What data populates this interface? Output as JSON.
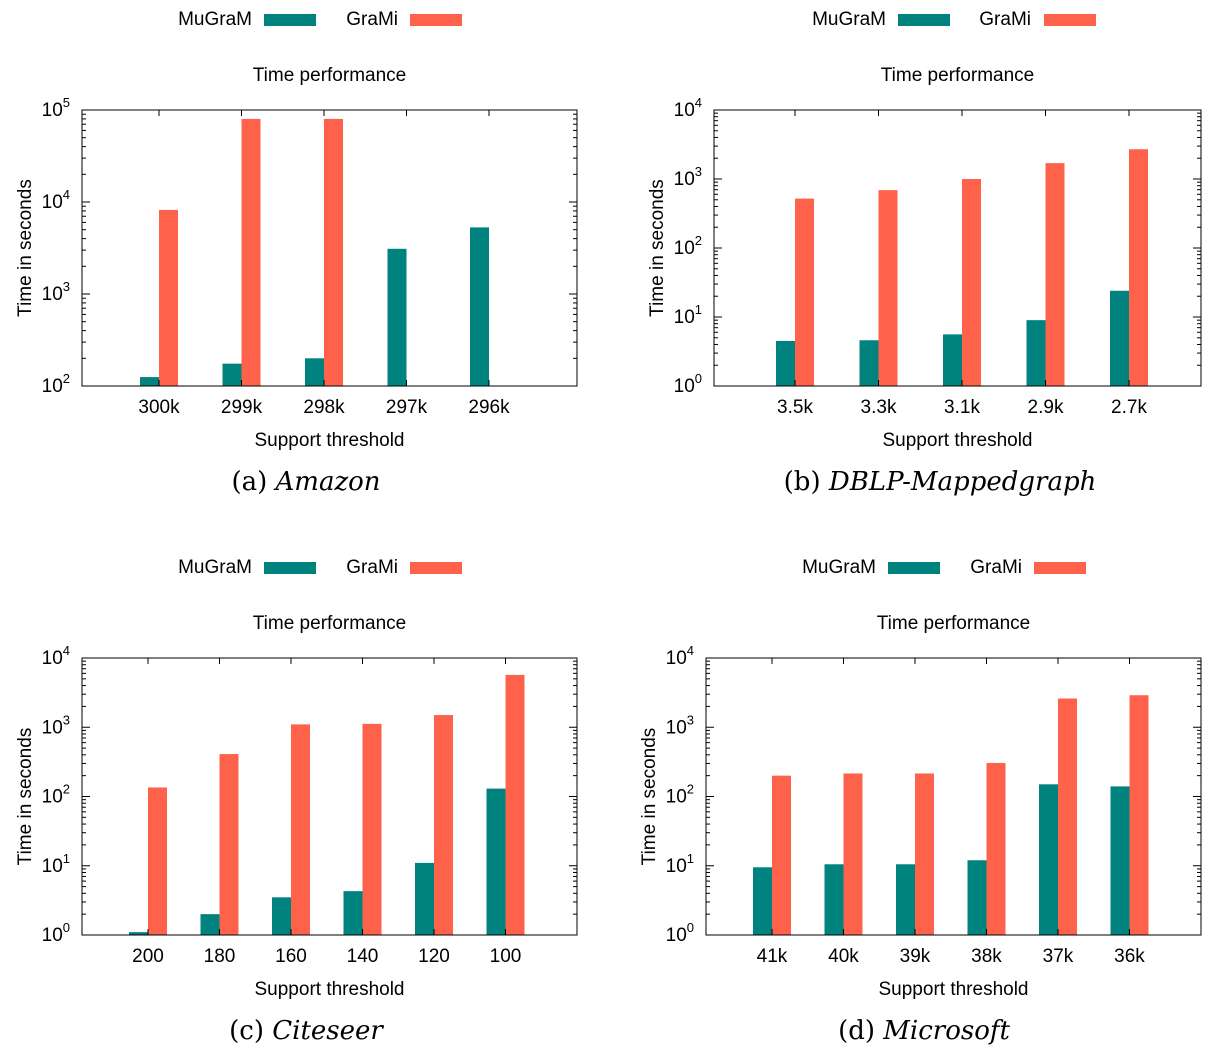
{
  "colors": {
    "mugram": "#00827f",
    "grami": "#ff624a",
    "axis": "#000000"
  },
  "chart_data": [
    {
      "type": "bar",
      "panel_label": "(a)",
      "dataset": "Amazon",
      "title": "Time performance",
      "xlabel": "Support threshold",
      "ylabel": "Time in seconds",
      "yscale": "log",
      "ylim": [
        100,
        100000
      ],
      "yticks": [
        {
          "base": "10",
          "exp": "2"
        },
        {
          "base": "10",
          "exp": "3"
        },
        {
          "base": "10",
          "exp": "4"
        },
        {
          "base": "10",
          "exp": "5"
        }
      ],
      "legend_position": "top",
      "categories": [
        "300k",
        "299k",
        "298k",
        "297k",
        "296k"
      ],
      "series": [
        {
          "name": "MuGraM",
          "values": [
            125,
            175,
            200,
            3100,
            5300
          ]
        },
        {
          "name": "GraMi",
          "values": [
            8200,
            80000,
            80000,
            null,
            null
          ]
        }
      ]
    },
    {
      "type": "bar",
      "panel_label": "(b)",
      "dataset": "DBLP-Mappedgraph",
      "title": "Time performance",
      "xlabel": "Support threshold",
      "ylabel": "Time in seconds",
      "yscale": "log",
      "ylim": [
        1,
        10000
      ],
      "yticks": [
        {
          "base": "10",
          "exp": "0"
        },
        {
          "base": "10",
          "exp": "1"
        },
        {
          "base": "10",
          "exp": "2"
        },
        {
          "base": "10",
          "exp": "3"
        },
        {
          "base": "10",
          "exp": "4"
        }
      ],
      "legend_position": "top",
      "categories": [
        "3.5k",
        "3.3k",
        "3.1k",
        "2.9k",
        "2.7k"
      ],
      "series": [
        {
          "name": "MuGraM",
          "values": [
            4.5,
            4.6,
            5.6,
            9,
            24
          ]
        },
        {
          "name": "GraMi",
          "values": [
            520,
            690,
            1000,
            1700,
            2700
          ]
        }
      ]
    },
    {
      "type": "bar",
      "panel_label": "(c)",
      "dataset": "Citeseer",
      "title": "Time performance",
      "xlabel": "Support threshold",
      "ylabel": "Time in seconds",
      "yscale": "log",
      "ylim": [
        1,
        10000
      ],
      "yticks": [
        {
          "base": "10",
          "exp": "0"
        },
        {
          "base": "10",
          "exp": "1"
        },
        {
          "base": "10",
          "exp": "2"
        },
        {
          "base": "10",
          "exp": "3"
        },
        {
          "base": "10",
          "exp": "4"
        }
      ],
      "legend_position": "top",
      "categories": [
        "200",
        "180",
        "160",
        "140",
        "120",
        "100"
      ],
      "series": [
        {
          "name": "MuGraM",
          "values": [
            1.1,
            2.0,
            3.5,
            4.3,
            11,
            130
          ]
        },
        {
          "name": "GraMi",
          "values": [
            135,
            410,
            1100,
            1120,
            1500,
            5700
          ]
        }
      ]
    },
    {
      "type": "bar",
      "panel_label": "(d)",
      "dataset": "Microsoft",
      "title": "Time performance",
      "xlabel": "Support threshold",
      "ylabel": "Time in seconds",
      "yscale": "log",
      "ylim": [
        1,
        10000
      ],
      "yticks": [
        {
          "base": "10",
          "exp": "0"
        },
        {
          "base": "10",
          "exp": "1"
        },
        {
          "base": "10",
          "exp": "2"
        },
        {
          "base": "10",
          "exp": "3"
        },
        {
          "base": "10",
          "exp": "4"
        }
      ],
      "legend_position": "top",
      "categories": [
        "41k",
        "40k",
        "39k",
        "38k",
        "37k",
        "36k"
      ],
      "series": [
        {
          "name": "MuGraM",
          "values": [
            9.5,
            10.5,
            10.5,
            12,
            150,
            140
          ]
        },
        {
          "name": "GraMi",
          "values": [
            200,
            215,
            215,
            305,
            2600,
            2900
          ]
        }
      ]
    }
  ]
}
